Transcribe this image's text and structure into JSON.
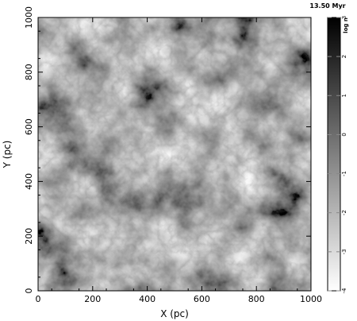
{
  "chart_data": {
    "type": "heatmap",
    "annotation": "13.50 Myr",
    "xlabel": "X (pc)",
    "ylabel": "Y (pc)",
    "xlim": [
      0,
      1000
    ],
    "ylim": [
      0,
      1000
    ],
    "x_ticks": [
      "0",
      "200",
      "400",
      "600",
      "800",
      "1000"
    ],
    "y_ticks": [
      "0",
      "200",
      "400",
      "600",
      "800",
      "1000"
    ],
    "colorbar": {
      "label": "log n",
      "range": [
        -4,
        3
      ],
      "ticks": [
        "-4",
        "-3",
        "-2",
        "-1",
        "0",
        "1",
        "2",
        "3"
      ],
      "colormap": "grayscale, white = low, black = high"
    },
    "grid": false
  }
}
